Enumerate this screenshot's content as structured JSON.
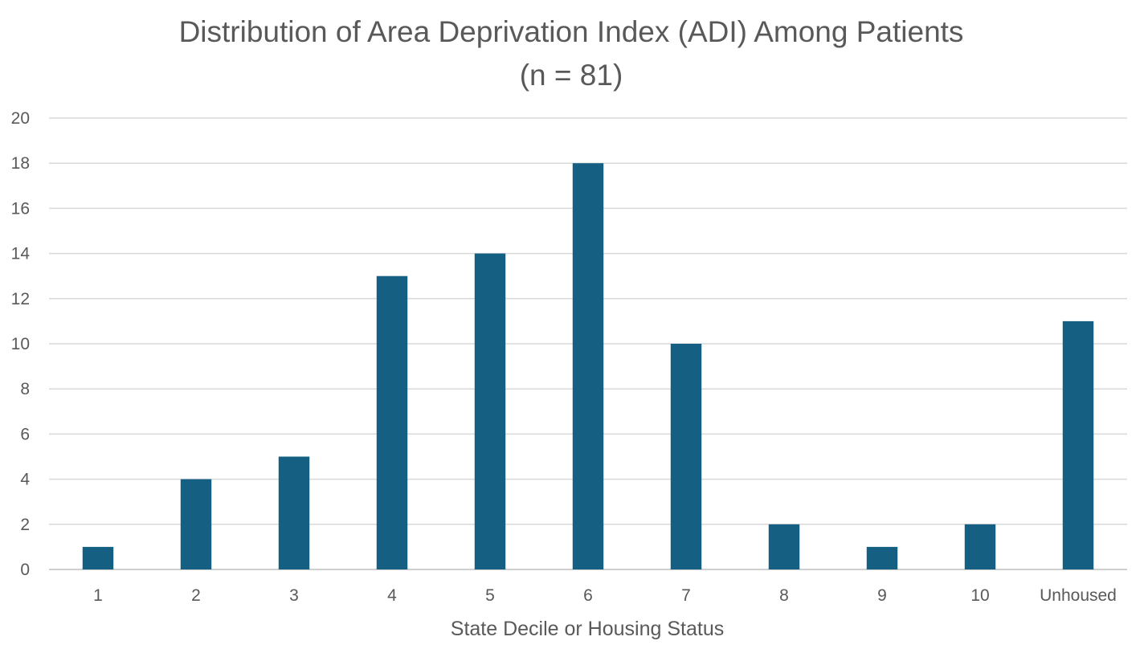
{
  "chart_data": {
    "type": "bar",
    "title": "Distribution of Area Deprivation Index (ADI) Among Patients",
    "subtitle": "(n = 81)",
    "xlabel": "State Decile or Housing Status",
    "ylabel": "",
    "categories": [
      "1",
      "2",
      "3",
      "4",
      "5",
      "6",
      "7",
      "8",
      "9",
      "10",
      "Unhoused"
    ],
    "values": [
      1,
      4,
      5,
      13,
      14,
      18,
      10,
      2,
      1,
      2,
      11
    ],
    "ylim": [
      0,
      20
    ],
    "yticks": [
      "0",
      "2",
      "4",
      "6",
      "8",
      "10",
      "12",
      "14",
      "16",
      "18",
      "20"
    ],
    "grid": true,
    "legend": "none",
    "bar_color": "#156082"
  }
}
